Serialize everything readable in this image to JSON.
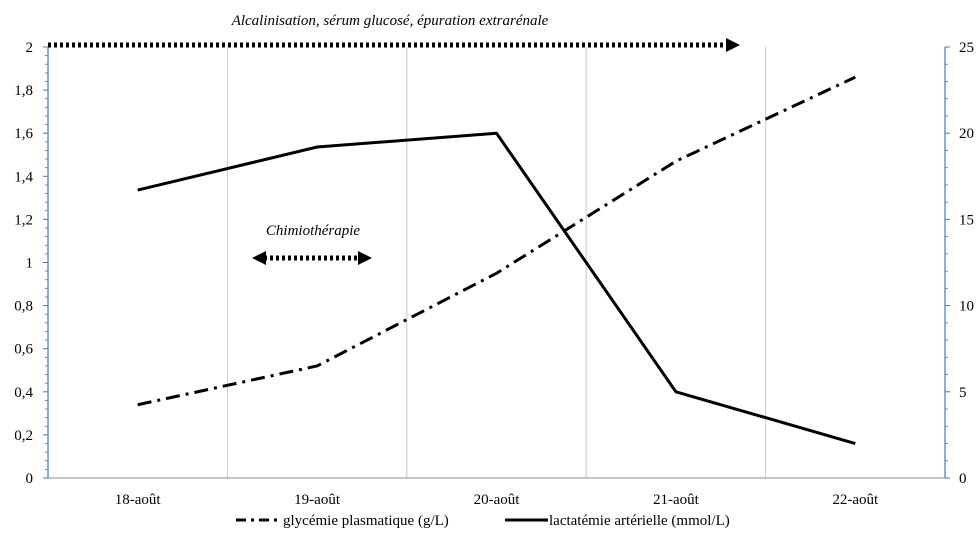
{
  "chart_data": {
    "type": "line",
    "categories": [
      "18-août",
      "19-août",
      "20-août",
      "21-août",
      "22-août"
    ],
    "series": [
      {
        "name": "glycémie plasmatique (g/L)",
        "axis": "left",
        "style": "dash-dot",
        "values": [
          0.34,
          0.52,
          0.95,
          1.47,
          1.86
        ]
      },
      {
        "name": "lactatémie artérielle (mmol/L)",
        "axis": "right",
        "style": "solid",
        "values": [
          16.7,
          19.2,
          20.0,
          5.0,
          2.0
        ]
      }
    ],
    "y_left": {
      "ylim": [
        0,
        2
      ],
      "ticks": [
        "0",
        "0,2",
        "0,4",
        "0,6",
        "0,8",
        "1",
        "1,2",
        "1,4",
        "1,6",
        "1,8",
        "2"
      ]
    },
    "y_right": {
      "ylim": [
        0,
        25
      ],
      "ticks": [
        "0",
        "5",
        "10",
        "15",
        "20",
        "25"
      ]
    },
    "annotations": [
      {
        "text": "Alcalinisation, sérum glucosé, épuration extrarénale"
      },
      {
        "text": "Chimiothérapie"
      }
    ],
    "grid": "vertical",
    "legend_position": "bottom"
  }
}
